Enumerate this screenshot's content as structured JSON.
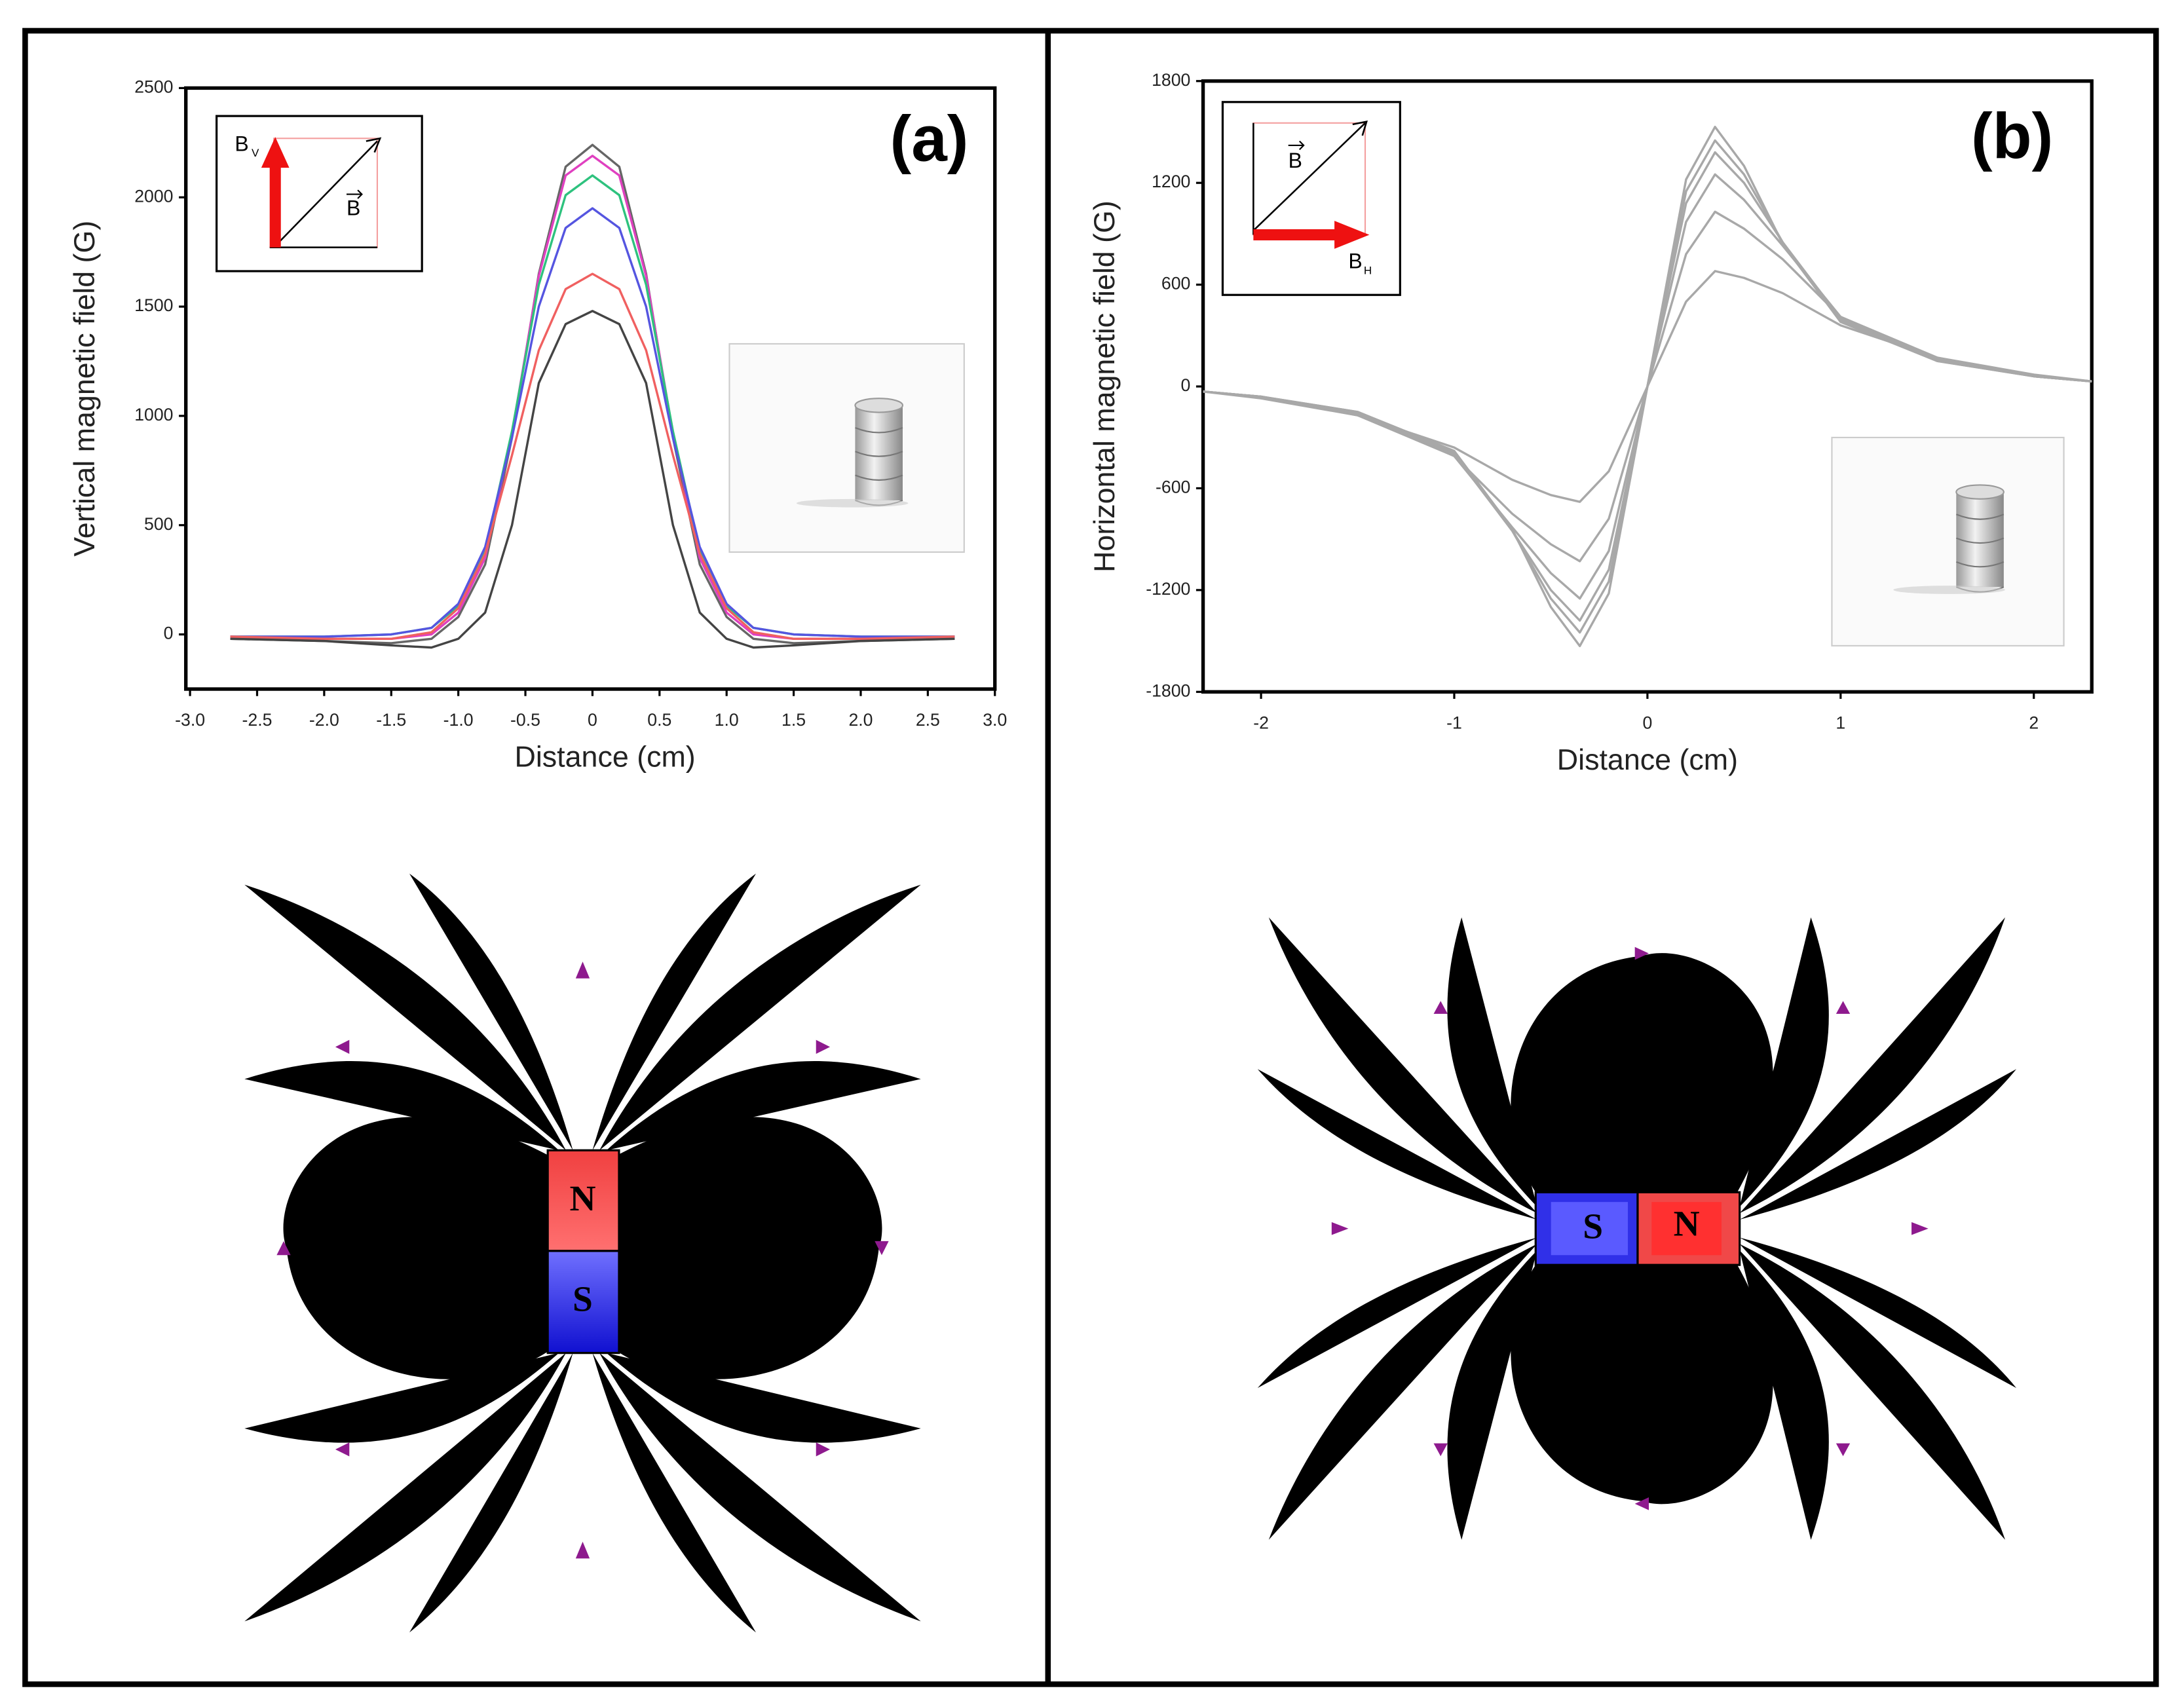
{
  "chart_data": [
    {
      "type": "line",
      "panel_label": "(a)",
      "y_label": "Vertical magnetic field (G)",
      "x_label": "Distance (cm)",
      "inset_labels": [
        "B",
        "V",
        "B"
      ],
      "x": [
        -2.7,
        -2,
        -1.5,
        -1.2,
        -1,
        -0.8,
        -0.6,
        -0.4,
        -0.2,
        0,
        0.2,
        0.4,
        0.6,
        0.8,
        1,
        1.2,
        1.5,
        2,
        2.7
      ],
      "series": [
        {
          "color": "#666666",
          "values": [
            -20,
            -30,
            -40,
            -20,
            80,
            320,
            900,
            1650,
            2140,
            2240,
            2140,
            1650,
            900,
            320,
            80,
            -20,
            -40,
            -30,
            -20
          ]
        },
        {
          "color": "#e040c0",
          "values": [
            -10,
            -20,
            -20,
            0,
            100,
            350,
            920,
            1640,
            2100,
            2190,
            2100,
            1640,
            920,
            350,
            100,
            0,
            -20,
            -20,
            -10
          ]
        },
        {
          "color": "#2ec27e",
          "values": [
            -10,
            -10,
            0,
            30,
            130,
            380,
            930,
            1600,
            2010,
            2100,
            2010,
            1600,
            930,
            380,
            130,
            30,
            0,
            -10,
            -10
          ]
        },
        {
          "color": "#5555e0",
          "values": [
            -10,
            -10,
            0,
            30,
            140,
            400,
            900,
            1500,
            1860,
            1950,
            1860,
            1500,
            900,
            400,
            140,
            30,
            0,
            -10,
            -10
          ]
        },
        {
          "color": "#f06060",
          "values": [
            -10,
            -20,
            -20,
            10,
            120,
            370,
            820,
            1300,
            1580,
            1650,
            1580,
            1300,
            820,
            370,
            120,
            10,
            -20,
            -20,
            -10
          ]
        },
        {
          "color": "#444444",
          "values": [
            -20,
            -30,
            -50,
            -60,
            -20,
            100,
            500,
            1150,
            1420,
            1480,
            1420,
            1150,
            500,
            100,
            -20,
            -60,
            -50,
            -30,
            -20
          ]
        }
      ],
      "xlim": [
        -3,
        3
      ],
      "ylim": [
        -250,
        2500
      ],
      "xticks": [
        {
          "value": -3,
          "label": "-3.0"
        },
        -2.5,
        {
          "value": -2,
          "label": "-2.0"
        },
        -1.5,
        {
          "value": -1,
          "label": "-1.0"
        },
        -0.5,
        0,
        0.5,
        {
          "value": 1,
          "label": "1.0"
        },
        1.5,
        {
          "value": 2,
          "label": "2.0"
        },
        2.5,
        {
          "value": 3,
          "label": "3.0"
        }
      ],
      "yticks": [
        0,
        500,
        1000,
        1500,
        2000,
        2500
      ]
    },
    {
      "type": "line",
      "panel_label": "(b)",
      "y_label": "Horizontal magnetic field (G)",
      "x_label": "Distance (cm)",
      "inset_labels": [
        "B",
        "B",
        "H"
      ],
      "x": [
        -2.3,
        -2,
        -1.5,
        -1,
        -0.7,
        -0.5,
        -0.35,
        -0.2,
        0,
        0.2,
        0.35,
        0.5,
        0.7,
        1,
        1.5,
        2,
        2.3
      ],
      "series": [
        {
          "color": "#a8a8a8",
          "values": [
            -30,
            -60,
            -150,
            -380,
            -840,
            -1300,
            -1530,
            -1220,
            0,
            1220,
            1530,
            1300,
            840,
            380,
            150,
            60,
            30
          ]
        },
        {
          "color": "#a8a8a8",
          "values": [
            -30,
            -60,
            -150,
            -390,
            -850,
            -1250,
            -1450,
            -1150,
            0,
            1150,
            1450,
            1250,
            850,
            390,
            150,
            60,
            30
          ]
        },
        {
          "color": "#a8a8a8",
          "values": [
            -30,
            -60,
            -160,
            -400,
            -850,
            -1200,
            -1380,
            -1080,
            0,
            1080,
            1380,
            1200,
            850,
            400,
            160,
            60,
            30
          ]
        },
        {
          "color": "#a8a8a8",
          "values": [
            -30,
            -60,
            -160,
            -410,
            -830,
            -1100,
            -1250,
            -970,
            0,
            970,
            1250,
            1100,
            830,
            410,
            160,
            60,
            30
          ]
        },
        {
          "color": "#a8a8a8",
          "values": [
            -30,
            -60,
            -170,
            -410,
            -750,
            -930,
            -1030,
            -780,
            0,
            780,
            1030,
            930,
            750,
            410,
            170,
            60,
            30
          ]
        },
        {
          "color": "#a8a8a8",
          "values": [
            -30,
            -70,
            -170,
            -360,
            -550,
            -640,
            -680,
            -500,
            0,
            500,
            680,
            640,
            550,
            360,
            170,
            70,
            30
          ]
        }
      ],
      "xlim": [
        -2.3,
        2.3
      ],
      "ylim": [
        -1800,
        1800
      ],
      "xticks": [
        -2,
        -1,
        0,
        1,
        2
      ],
      "yticks": [
        -1800,
        -1200,
        -600,
        0,
        600,
        1200,
        1800
      ]
    }
  ],
  "diagrams": [
    {
      "poles": [
        "N",
        "S"
      ]
    },
    {
      "poles": [
        "S",
        "N"
      ]
    }
  ]
}
